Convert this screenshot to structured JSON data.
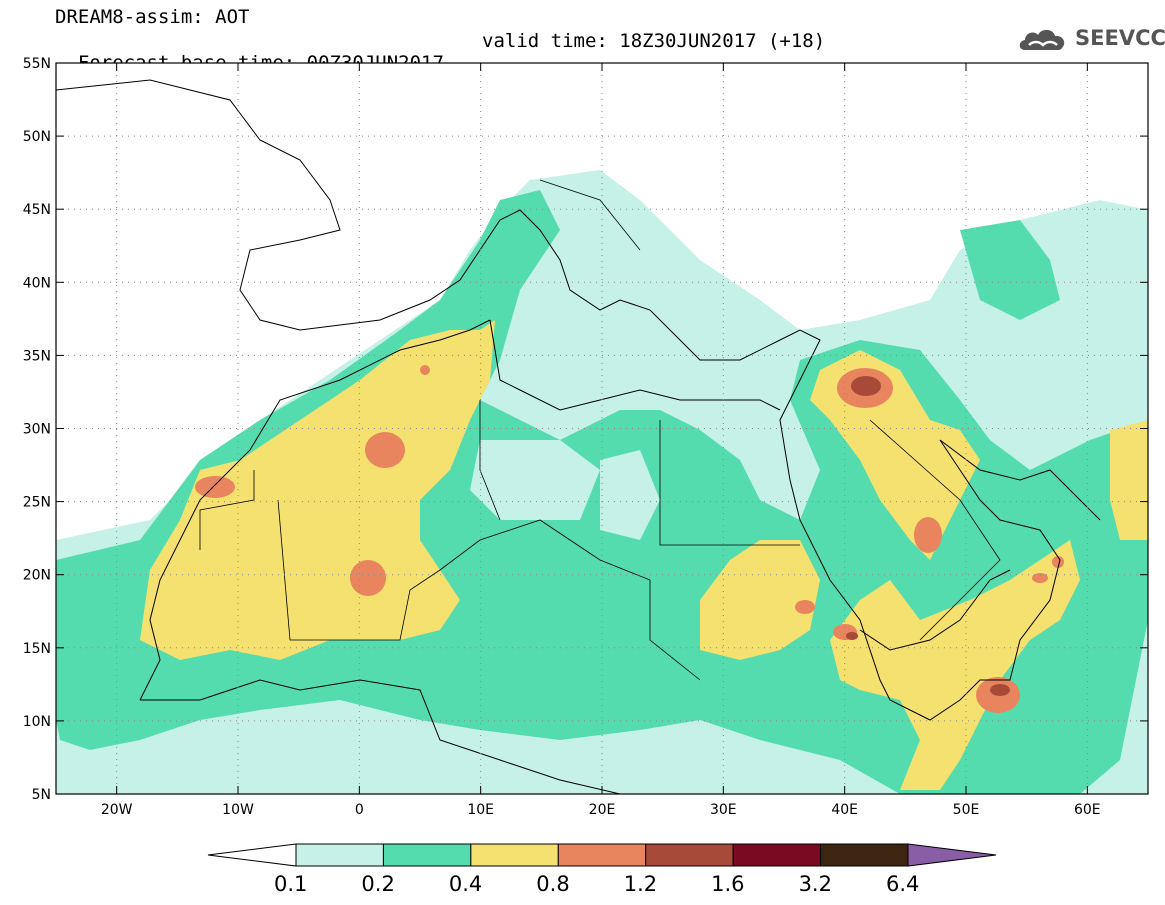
{
  "header": {
    "title_line1": "DREAM8-assim: AOT",
    "title_line2": "Forecast base time: 00Z30JUN2017",
    "valid_time": "valid time: 18Z30JUN2017 (+18)",
    "logo_text": "SEEVCCC",
    "logo_icon": "cloud-icon"
  },
  "map": {
    "lat_range": [
      5,
      55
    ],
    "lon_range": [
      -25,
      65
    ],
    "lat_labels": [
      "55N",
      "50N",
      "45N",
      "40N",
      "35N",
      "30N",
      "25N",
      "20N",
      "15N",
      "10N",
      "5N"
    ],
    "lon_labels": [
      "20W",
      "10W",
      "0",
      "10E",
      "20E",
      "30E",
      "40E",
      "50E",
      "60E"
    ],
    "grid": true
  },
  "colorbar": {
    "levels": [
      "0.1",
      "0.2",
      "0.4",
      "0.8",
      "1.2",
      "1.6",
      "3.2",
      "6.4"
    ],
    "colors": [
      "#ffffff",
      "#c6f1e9",
      "#55dcae",
      "#f5e170",
      "#e8845e",
      "#a84a3a",
      "#7a0a22",
      "#3c2612",
      "#8a5ea6"
    ]
  },
  "colors": {
    "c1": "#c6f1e9",
    "c2": "#55dcae",
    "c3": "#f5e170",
    "c4": "#e8845e",
    "c5": "#a84a3a"
  }
}
